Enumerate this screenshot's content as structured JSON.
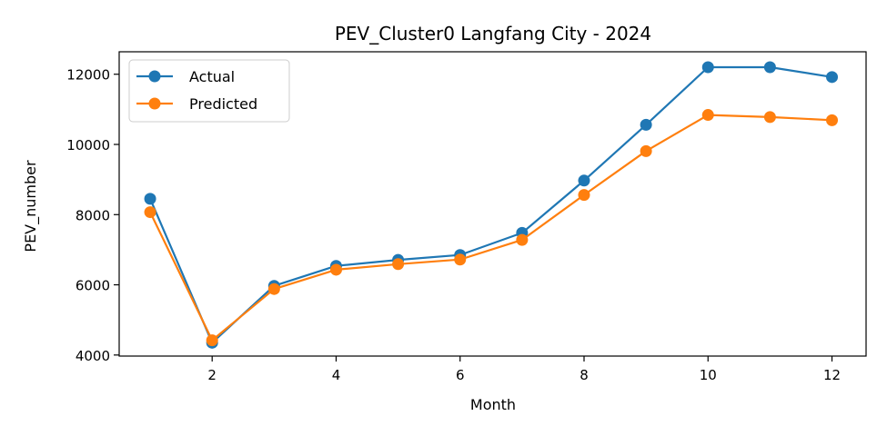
{
  "chart_data": {
    "type": "line",
    "title": "PEV_Cluster0 Langfang City - 2024",
    "xlabel": "Month",
    "ylabel": "PEV_number",
    "x": [
      1,
      2,
      3,
      4,
      5,
      6,
      7,
      8,
      9,
      10,
      11,
      12
    ],
    "xlim": [
      0.5,
      12.55
    ],
    "ylim": [
      3970,
      12640
    ],
    "xticks": [
      2,
      4,
      6,
      8,
      10,
      12
    ],
    "yticks": [
      4000,
      6000,
      8000,
      10000,
      12000
    ],
    "grid": false,
    "legend_position": "upper-left",
    "series": [
      {
        "name": "Actual",
        "color": "#1f77b4",
        "values": [
          8450,
          4350,
          5970,
          6540,
          6710,
          6850,
          7480,
          8970,
          10560,
          12200,
          12200,
          11920
        ]
      },
      {
        "name": "Predicted",
        "color": "#ff7f0e",
        "values": [
          8070,
          4420,
          5880,
          6430,
          6590,
          6720,
          7280,
          8560,
          9810,
          10840,
          10780,
          10690
        ]
      }
    ]
  }
}
